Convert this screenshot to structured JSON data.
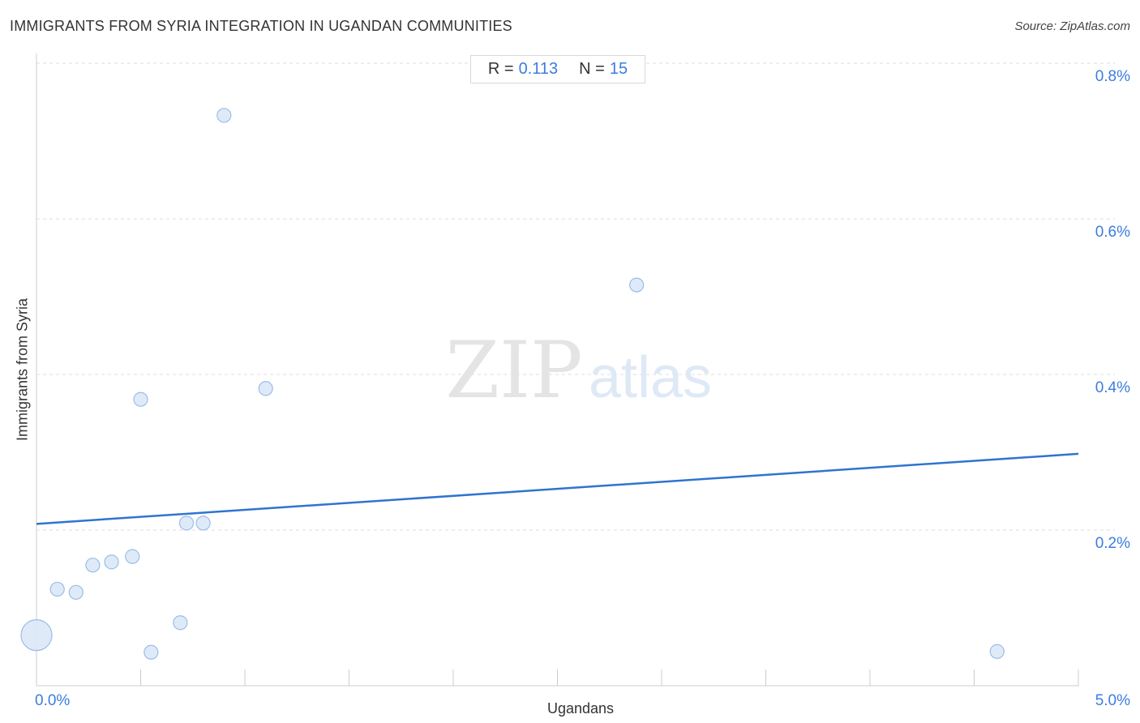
{
  "header": {
    "title": "IMMIGRANTS FROM SYRIA INTEGRATION IN UGANDAN COMMUNITIES",
    "source": "Source: ZipAtlas.com"
  },
  "stats": {
    "r_label": "R =",
    "r_value": "0.113",
    "n_label": "N =",
    "n_value": "15"
  },
  "watermark": {
    "zip": "ZIP",
    "atlas": "atlas"
  },
  "colors": {
    "point_fill": "#dbe8f8",
    "point_stroke": "#9bbce8",
    "trend": "#2f74d0",
    "tick_label": "#3b7ddd",
    "grid": "#dddddd"
  },
  "chart_data": {
    "type": "scatter",
    "title": "IMMIGRANTS FROM SYRIA INTEGRATION IN UGANDAN COMMUNITIES",
    "xlabel": "Ugandans",
    "ylabel": "Immigrants from Syria",
    "xlim": [
      0,
      5.0
    ],
    "ylim": [
      0,
      0.8
    ],
    "x_tick_labels": [
      {
        "value": 0,
        "label": "0.0%"
      },
      {
        "value": 5.0,
        "label": "5.0%"
      }
    ],
    "y_tick_labels": [
      {
        "value": 0.2,
        "label": "0.2%"
      },
      {
        "value": 0.4,
        "label": "0.4%"
      },
      {
        "value": 0.6,
        "label": "0.6%"
      },
      {
        "value": 0.8,
        "label": "0.8%"
      }
    ],
    "x_minor_ticks": [
      0.5,
      1.0,
      1.5,
      2.0,
      2.5,
      3.0,
      3.5,
      4.0,
      4.5,
      5.0
    ],
    "grid": true,
    "points": [
      {
        "x": 0.0,
        "y": 0.065,
        "size": "large"
      },
      {
        "x": 0.1,
        "y": 0.124
      },
      {
        "x": 0.19,
        "y": 0.12
      },
      {
        "x": 0.27,
        "y": 0.155
      },
      {
        "x": 0.36,
        "y": 0.159
      },
      {
        "x": 0.46,
        "y": 0.166
      },
      {
        "x": 0.5,
        "y": 0.368
      },
      {
        "x": 0.55,
        "y": 0.043
      },
      {
        "x": 0.69,
        "y": 0.081
      },
      {
        "x": 0.72,
        "y": 0.209
      },
      {
        "x": 0.8,
        "y": 0.209
      },
      {
        "x": 0.9,
        "y": 0.733
      },
      {
        "x": 1.1,
        "y": 0.382
      },
      {
        "x": 2.88,
        "y": 0.515
      },
      {
        "x": 4.61,
        "y": 0.044
      }
    ],
    "trendline": {
      "x": [
        0,
        5.0
      ],
      "y": [
        0.208,
        0.298
      ]
    },
    "stats": {
      "R": 0.113,
      "N": 15
    }
  }
}
